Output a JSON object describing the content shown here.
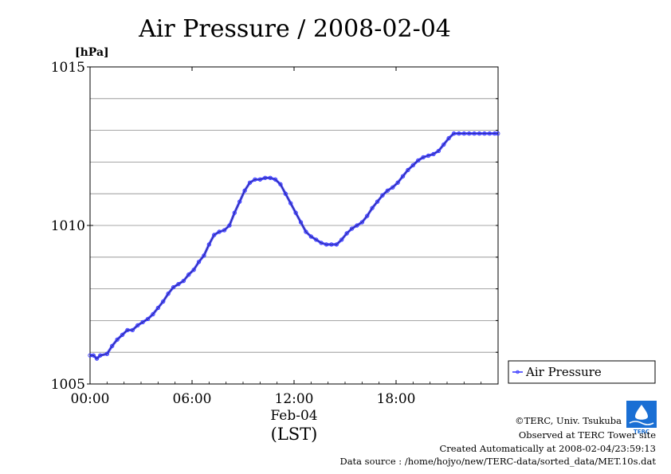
{
  "chart_data": {
    "type": "line",
    "title": "Air Pressure / 2008-02-04",
    "ylabel": "[hPa]",
    "xlabel_date": "Feb-04",
    "xlabel_unit": "(LST)",
    "ylim": [
      1005,
      1015
    ],
    "xlim": [
      0,
      24
    ],
    "y_ticks": [
      {
        "value": 1005,
        "label": "1005"
      },
      {
        "value": 1010,
        "label": "1010"
      },
      {
        "value": 1015,
        "label": "1015"
      }
    ],
    "y_gridlines": [
      1006,
      1007,
      1008,
      1009,
      1010,
      1011,
      1012,
      1013,
      1014
    ],
    "x_ticks": [
      {
        "value": 0,
        "label": "00:00"
      },
      {
        "value": 6,
        "label": "06:00"
      },
      {
        "value": 12,
        "label": "12:00"
      },
      {
        "value": 18,
        "label": "18:00"
      }
    ],
    "grid": "horizontal",
    "legend_position": "right",
    "series": [
      {
        "name": "Air Pressure",
        "color": "#3333ff",
        "x": [
          0,
          0.2,
          0.4,
          0.6,
          1.0,
          1.3,
          1.6,
          1.9,
          2.2,
          2.5,
          2.8,
          3.1,
          3.4,
          3.7,
          4.0,
          4.3,
          4.6,
          4.9,
          5.2,
          5.5,
          5.8,
          6.1,
          6.4,
          6.7,
          7.0,
          7.3,
          7.6,
          7.9,
          8.2,
          8.5,
          8.8,
          9.1,
          9.4,
          9.7,
          10.0,
          10.3,
          10.6,
          10.9,
          11.2,
          11.5,
          11.8,
          12.1,
          12.4,
          12.7,
          13.0,
          13.3,
          13.6,
          13.9,
          14.2,
          14.5,
          14.8,
          15.1,
          15.4,
          15.7,
          16.0,
          16.3,
          16.6,
          16.9,
          17.2,
          17.5,
          17.8,
          18.1,
          18.4,
          18.7,
          19.0,
          19.3,
          19.6,
          19.9,
          20.2,
          20.5,
          20.8,
          21.1,
          21.4,
          21.7,
          22.0,
          22.3,
          22.6,
          22.9,
          23.2,
          23.5,
          23.8,
          23.99
        ],
        "y": [
          1005.9,
          1005.9,
          1005.8,
          1005.9,
          1005.95,
          1006.2,
          1006.4,
          1006.55,
          1006.7,
          1006.7,
          1006.85,
          1006.95,
          1007.05,
          1007.2,
          1007.4,
          1007.6,
          1007.85,
          1008.05,
          1008.15,
          1008.25,
          1008.45,
          1008.6,
          1008.85,
          1009.05,
          1009.4,
          1009.7,
          1009.8,
          1009.85,
          1010.0,
          1010.4,
          1010.75,
          1011.1,
          1011.35,
          1011.45,
          1011.45,
          1011.5,
          1011.5,
          1011.45,
          1011.3,
          1011.0,
          1010.7,
          1010.4,
          1010.1,
          1009.8,
          1009.65,
          1009.55,
          1009.45,
          1009.4,
          1009.4,
          1009.4,
          1009.55,
          1009.75,
          1009.9,
          1010.0,
          1010.1,
          1010.3,
          1010.55,
          1010.75,
          1010.95,
          1011.1,
          1011.2,
          1011.35,
          1011.55,
          1011.75,
          1011.9,
          1012.05,
          1012.15,
          1012.2,
          1012.25,
          1012.35,
          1012.55,
          1012.75,
          1012.9,
          1012.9,
          1012.9,
          1012.9,
          1012.9,
          1012.9,
          1012.9,
          1012.9,
          1012.9,
          1012.9
        ]
      }
    ]
  },
  "credits": {
    "copyright": "©TERC, Univ. Tsukuba",
    "observed": "Observed at TERC Tower site",
    "created": "Created Automatically at 2008-02-04/23:59:13",
    "source": "Data source : /home/hojyo/new/TERC-data/sorted_data/MET.10s.dat"
  },
  "logo": {
    "text": "TERC",
    "icon": "terc-logo-icon",
    "color": "#1a6fd4"
  }
}
